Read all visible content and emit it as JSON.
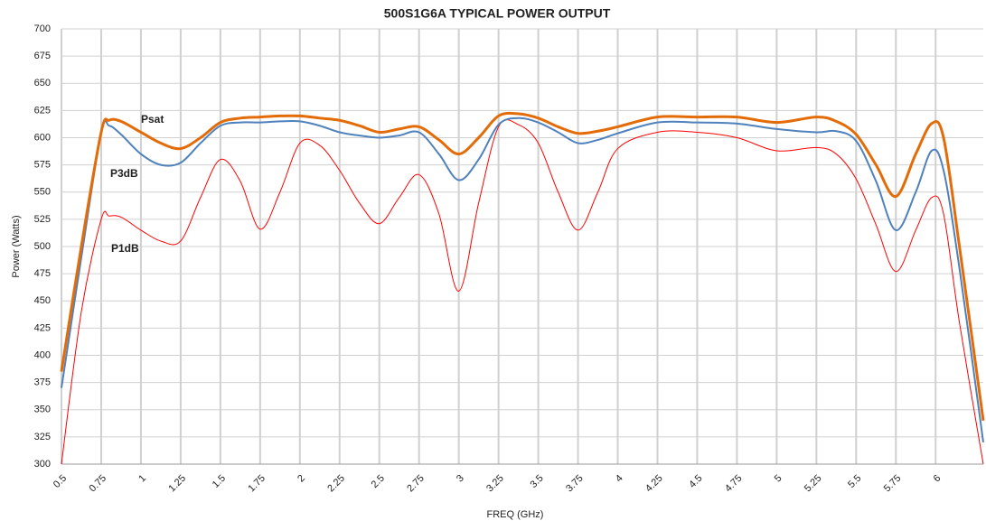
{
  "chart_data": {
    "type": "line",
    "title": "500S1G6A TYPICAL POWER OUTPUT",
    "x_label": "FREQ (GHz)",
    "y_label": "Power (Watts)",
    "annotations": [
      "Psat",
      "P3dB",
      "P1dB"
    ],
    "x": [
      0.5,
      0.625,
      0.75,
      0.8,
      0.875,
      1,
      1.125,
      1.25,
      1.375,
      1.5,
      1.625,
      1.75,
      1.875,
      2,
      2.125,
      2.25,
      2.375,
      2.5,
      2.625,
      2.75,
      2.875,
      3,
      3.125,
      3.25,
      3.375,
      3.5,
      3.625,
      3.75,
      3.875,
      4,
      4.25,
      4.5,
      4.75,
      5,
      5.25,
      5.375,
      5.5,
      5.625,
      5.75,
      5.875,
      5.975,
      6.05,
      6.15,
      6.3
    ],
    "series": [
      {
        "name": "Psat",
        "color": "#e36c09",
        "values": [
          385,
          500,
          605,
          616,
          615,
          605,
          595,
          590,
          600,
          614,
          618,
          619,
          620,
          620,
          618,
          616,
          611,
          605,
          608,
          610,
          598,
          585,
          600,
          620,
          622,
          618,
          610,
          604,
          606,
          610,
          619,
          619,
          619,
          614,
          619,
          615,
          603,
          575,
          546,
          585,
          613,
          600,
          500,
          340
        ]
      },
      {
        "name": "P3dB",
        "color": "#4f81bd",
        "values": [
          370,
          490,
          605,
          611,
          603,
          585,
          575,
          577,
          595,
          611,
          614,
          614,
          615,
          615,
          611,
          605,
          602,
          600,
          602,
          605,
          585,
          561,
          580,
          612,
          618,
          614,
          605,
          595,
          598,
          604,
          614,
          614,
          613,
          608,
          605,
          606,
          597,
          560,
          515,
          550,
          588,
          570,
          480,
          320
        ]
      },
      {
        "name": "P1dB",
        "color": "#ff0000",
        "values": [
          300,
          440,
          525,
          528,
          527,
          515,
          505,
          505,
          545,
          580,
          560,
          516,
          550,
          595,
          593,
          570,
          540,
          521,
          545,
          566,
          530,
          459,
          540,
          610,
          612,
          595,
          550,
          515,
          550,
          590,
          605,
          605,
          600,
          588,
          591,
          585,
          562,
          520,
          477,
          515,
          545,
          530,
          430,
          300
        ]
      }
    ],
    "xlim": [
      0.5,
      6.3
    ],
    "xticks": [
      0.5,
      0.75,
      1,
      1.25,
      1.5,
      1.75,
      2,
      2.25,
      2.5,
      2.75,
      3,
      3.25,
      3.5,
      3.75,
      4,
      4.25,
      4.5,
      4.75,
      5,
      5.25,
      5.5,
      5.75,
      6
    ],
    "ylim": [
      300,
      700
    ],
    "yticks": [
      300,
      325,
      350,
      375,
      400,
      425,
      450,
      475,
      500,
      525,
      550,
      575,
      600,
      625,
      650,
      675,
      700
    ],
    "grid": true
  }
}
